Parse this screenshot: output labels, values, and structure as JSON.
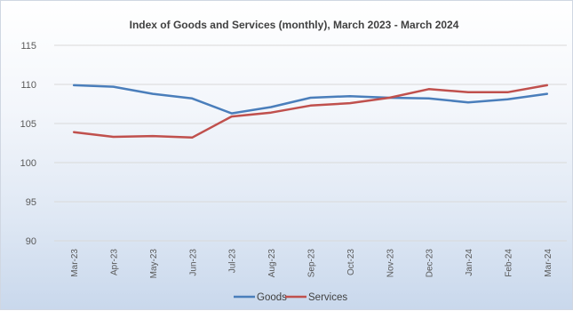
{
  "chart_data": {
    "type": "line",
    "title": "Index of Goods and Services (monthly), March 2023 - March 2024",
    "xlabel": "",
    "ylabel": "",
    "categories": [
      "Mar-23",
      "Apr-23",
      "May-23",
      "Jun-23",
      "Jul-23",
      "Aug-23",
      "Sep-23",
      "Oct-23",
      "Nov-23",
      "Dec-23",
      "Jan-24",
      "Feb-24",
      "Mar-24"
    ],
    "ylim": [
      90,
      115
    ],
    "yticks": [
      "90",
      "95",
      "100",
      "105",
      "110",
      "115"
    ],
    "grid": true,
    "legend_position": "bottom",
    "series": [
      {
        "name": "Goods",
        "color": "#4a7ebb",
        "values": [
          109.9,
          109.7,
          108.8,
          108.2,
          106.3,
          107.1,
          108.3,
          108.5,
          108.3,
          108.2,
          107.7,
          108.1,
          108.8
        ]
      },
      {
        "name": "Services",
        "color": "#c0504d",
        "values": [
          103.9,
          103.3,
          103.4,
          103.2,
          105.9,
          106.4,
          107.3,
          107.6,
          108.3,
          109.4,
          109.0,
          109.0,
          109.9
        ]
      }
    ]
  }
}
